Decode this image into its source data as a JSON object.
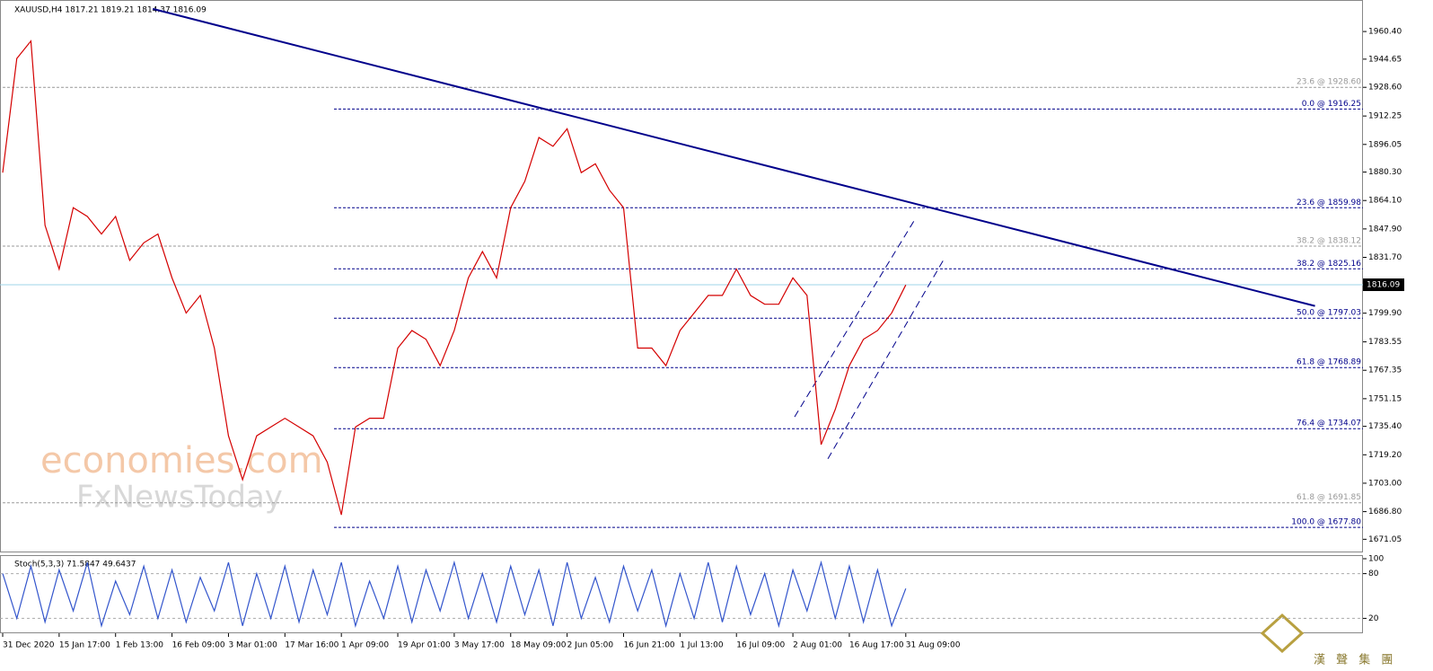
{
  "chart_data": [
    {
      "type": "line",
      "title": "XAUUSD,H4  1817.21 1819.21 1814.37 1816.09",
      "x": [
        0,
        0.25,
        0.5,
        0.75,
        1,
        1.25,
        1.5,
        1.75,
        2,
        2.25,
        2.5,
        2.75,
        3,
        3.25,
        3.5,
        3.75,
        4,
        4.25,
        4.5,
        4.75,
        5,
        5.25,
        5.5,
        5.75,
        6,
        6.25,
        6.5,
        6.75,
        7,
        7.25,
        7.5,
        7.75,
        8,
        8.25,
        8.5,
        8.75,
        9,
        9.25,
        9.5,
        9.75,
        10,
        10.25,
        10.5,
        10.75,
        11,
        11.25,
        11.5,
        11.75,
        12,
        12.25,
        12.5,
        12.75,
        13,
        13.25,
        13.5,
        13.75,
        14,
        14.25,
        14.5,
        14.75,
        15,
        15.25,
        15.5,
        15.75,
        16
      ],
      "series": [
        {
          "color": "#d40000",
          "values": [
            1880,
            1945,
            1955,
            1850,
            1825,
            1860,
            1855,
            1845,
            1855,
            1830,
            1840,
            1845,
            1820,
            1800,
            1810,
            1780,
            1730,
            1705,
            1730,
            1735,
            1740,
            1735,
            1730,
            1715,
            1685,
            1735,
            1740,
            1740,
            1780,
            1790,
            1785,
            1770,
            1790,
            1820,
            1835,
            1820,
            1860,
            1875,
            1900,
            1895,
            1905,
            1880,
            1885,
            1870,
            1860,
            1780,
            1780,
            1770,
            1790,
            1800,
            1810,
            1810,
            1825,
            1810,
            1805,
            1805,
            1820,
            1810,
            1725,
            1745,
            1770,
            1785,
            1790,
            1800,
            1816
          ]
        }
      ],
      "xlim": [
        0,
        24.1
      ],
      "xticks": [
        {
          "value": 0,
          "label": "31 Dec 2020"
        },
        {
          "value": 1,
          "label": "15 Jan 17:00"
        },
        {
          "value": 2,
          "label": "1 Feb 13:00"
        },
        {
          "value": 3,
          "label": "16 Feb 09:00"
        },
        {
          "value": 4,
          "label": "3 Mar 01:00"
        },
        {
          "value": 5,
          "label": "17 Mar 16:00"
        },
        {
          "value": 6,
          "label": "1 Apr 09:00"
        },
        {
          "value": 7,
          "label": "19 Apr 01:00"
        },
        {
          "value": 8,
          "label": "3 May 17:00"
        },
        {
          "value": 9,
          "label": "18 May 09:00"
        },
        {
          "value": 10,
          "label": "2 Jun 05:00"
        },
        {
          "value": 11,
          "label": "16 Jun 21:00"
        },
        {
          "value": 12,
          "label": "1 Jul 13:00"
        },
        {
          "value": 13,
          "label": "16 Jul 09:00"
        },
        {
          "value": 14,
          "label": "2 Aug 01:00"
        },
        {
          "value": 15,
          "label": "16 Aug 17:00"
        },
        {
          "value": 16,
          "label": "31 Aug 09:00"
        }
      ],
      "ylim": [
        1665.6,
        1975.8
      ],
      "yticks": [
        {
          "value": 1960.4,
          "label": "1960.40"
        },
        {
          "value": 1944.65,
          "label": "1944.65"
        },
        {
          "value": 1928.6,
          "label": "1928.60"
        },
        {
          "value": 1912.25,
          "label": "1912.25"
        },
        {
          "value": 1896.05,
          "label": "1896.05"
        },
        {
          "value": 1880.3,
          "label": "1880.30"
        },
        {
          "value": 1864.1,
          "label": "1864.10"
        },
        {
          "value": 1847.9,
          "label": "1847.90"
        },
        {
          "value": 1831.7,
          "label": "1831.70"
        },
        {
          "value": 1799.9,
          "label": "1799.90"
        },
        {
          "value": 1783.55,
          "label": "1783.55"
        },
        {
          "value": 1767.35,
          "label": "1767.35"
        },
        {
          "value": 1751.15,
          "label": "1751.15"
        },
        {
          "value": 1735.4,
          "label": "1735.40"
        },
        {
          "value": 1719.2,
          "label": "1719.20"
        },
        {
          "value": 1703,
          "label": "1703.00"
        },
        {
          "value": 1686.8,
          "label": "1686.80"
        },
        {
          "value": 1671.05,
          "label": "1671.05"
        }
      ],
      "current_price": {
        "value": 1816.09,
        "label": "1816.09"
      },
      "fib_levels": [
        {
          "label": "23.6 @ 1928.60",
          "value": 1928.6,
          "color": "#999999",
          "start": 0
        },
        {
          "label": "0.0 @ 1916.25",
          "value": 1916.25,
          "color": "#00008b",
          "start": 5.87
        },
        {
          "label": "23.6 @ 1859.98",
          "value": 1859.98,
          "color": "#00008b",
          "start": 5.87
        },
        {
          "label": "38.2 @ 1838.12",
          "value": 1838.12,
          "color": "#999999",
          "start": 0
        },
        {
          "label": "38.2 @ 1825.16",
          "value": 1825.16,
          "color": "#00008b",
          "start": 5.87
        },
        {
          "label": "50.0 @ 1797.03",
          "value": 1797.03,
          "color": "#00008b",
          "start": 5.87
        },
        {
          "label": "61.8 @ 1768.89",
          "value": 1768.89,
          "color": "#00008b",
          "start": 5.87
        },
        {
          "label": "76.4 @ 1734.07",
          "value": 1734.07,
          "color": "#00008b",
          "start": 5.87
        },
        {
          "label": "61.8 @ 1691.85",
          "value": 1691.85,
          "color": "#999999",
          "start": 0
        },
        {
          "label": "100.0 @ 1677.80",
          "value": 1677.8,
          "color": "#00008b",
          "start": 5.87
        }
      ],
      "trendlines": [
        {
          "x": [
            2.66,
            23.25
          ],
          "y": [
            1973.3,
            1804.0
          ],
          "color": "#00008b",
          "dashed": false
        },
        {
          "x": [
            14.03,
            16.18
          ],
          "y": [
            1740.8,
            1854.3
          ],
          "color": "#00008b",
          "dashed": true
        },
        {
          "x": [
            14.62,
            16.68
          ],
          "y": [
            1716.9,
            1830.9
          ],
          "color": "#00008b",
          "dashed": true
        }
      ]
    },
    {
      "type": "line",
      "title": "Stoch(5,3,3) 71.5847 49.6437",
      "x": [
        0,
        0.25,
        0.5,
        0.75,
        1,
        1.25,
        1.5,
        1.75,
        2,
        2.25,
        2.5,
        2.75,
        3,
        3.25,
        3.5,
        3.75,
        4,
        4.25,
        4.5,
        4.75,
        5,
        5.25,
        5.5,
        5.75,
        6,
        6.25,
        6.5,
        6.75,
        7,
        7.25,
        7.5,
        7.75,
        8,
        8.25,
        8.5,
        8.75,
        9,
        9.25,
        9.5,
        9.75,
        10,
        10.25,
        10.5,
        10.75,
        11,
        11.25,
        11.5,
        11.75,
        12,
        12.25,
        12.5,
        12.75,
        13,
        13.25,
        13.5,
        13.75,
        14,
        14.25,
        14.5,
        14.75,
        15,
        15.25,
        15.5,
        15.75,
        16
      ],
      "series": [
        {
          "color": "#3355cc",
          "values": [
            80,
            20,
            90,
            15,
            85,
            30,
            95,
            10,
            70,
            25,
            90,
            20,
            85,
            15,
            75,
            30,
            95,
            10,
            80,
            20,
            90,
            15,
            85,
            25,
            95,
            10,
            70,
            20,
            90,
            15,
            85,
            30,
            95,
            20,
            80,
            15,
            90,
            25,
            85,
            10,
            95,
            20,
            75,
            15,
            90,
            30,
            85,
            10,
            80,
            20,
            95,
            15,
            90,
            25,
            80,
            10,
            85,
            30,
            95,
            20,
            90,
            15,
            85,
            10,
            60
          ]
        }
      ],
      "xlim": [
        0,
        24.1
      ],
      "ylim": [
        0,
        100
      ],
      "yticks": [
        100,
        80,
        20
      ]
    }
  ],
  "watermark": {
    "line1": "economies.com",
    "line2": "FxNewsToday"
  },
  "logo": "漢 聲 集 團"
}
